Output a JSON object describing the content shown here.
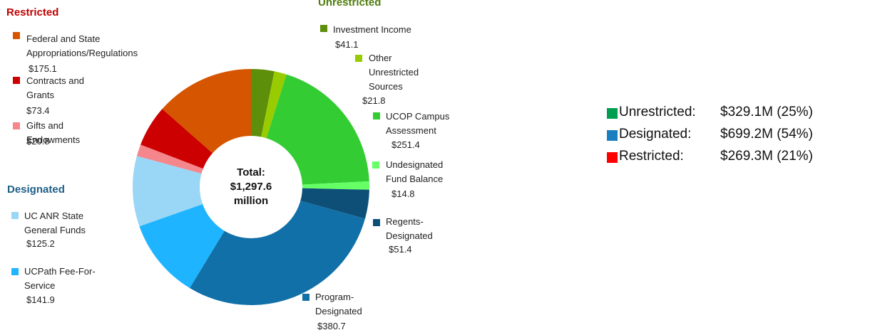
{
  "chart_data": {
    "type": "pie",
    "donut": true,
    "categories": [
      "Investment Income",
      "Other Unrestricted Sources",
      "UCOP Campus Assessment",
      "Undesignated Fund Balance",
      "Regents-Designated",
      "Program-Designated",
      "UCPath Fee-For-Service",
      "UC ANR State General Funds",
      "Gifts and Endowments",
      "Contracts and Grants",
      "Federal and State Appropriations/Regulations"
    ],
    "values": [
      41.1,
      21.8,
      251.4,
      14.8,
      51.4,
      380.7,
      141.9,
      125.2,
      20.8,
      73.4,
      175.1
    ],
    "value_labels": [
      "$41.1",
      "$21.8",
      "$251.4",
      "$14.8",
      "$51.4",
      "$380.7",
      "$141.9",
      "$125.2",
      "$20.8",
      "$73.4",
      "$175.1"
    ],
    "colors": [
      "#5e8f0a",
      "#99cc00",
      "#33cc33",
      "#66ff66",
      "#0e4f78",
      "#1170a8",
      "#1eb4ff",
      "#9ad6f5",
      "#f4868c",
      "#cc0000",
      "#d65500"
    ],
    "groups": [
      {
        "name": "Unrestricted",
        "color": "#4f7d0f"
      },
      {
        "name": "Designated",
        "color": "#1d5e87"
      },
      {
        "name": "Restricted",
        "color": "#c00000"
      }
    ],
    "center_label": [
      "Total:",
      "$1,297.6",
      "million"
    ],
    "legend": [
      {
        "name": "Unrestricted:",
        "value_label": "$329.1M (25%)",
        "color": "#00a050"
      },
      {
        "name": "Designated:",
        "value_label": "$699.2M (54%)",
        "color": "#1a7fc1"
      },
      {
        "name": "Restricted:",
        "value_label": "$269.3M (21%)",
        "color": "#ff0000"
      }
    ]
  }
}
